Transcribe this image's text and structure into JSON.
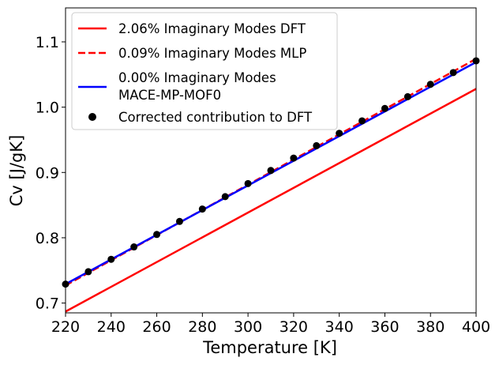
{
  "chart_data": {
    "type": "line",
    "xlabel": "Temperature [K]",
    "ylabel": "Cv [J/gK]",
    "xlim": [
      220,
      400
    ],
    "ylim": [
      0.685,
      1.152
    ],
    "xticks": [
      220,
      240,
      260,
      280,
      300,
      320,
      340,
      360,
      380,
      400
    ],
    "yticks": [
      0.7,
      0.8,
      0.9,
      1.0,
      1.1
    ],
    "ytick_labels": [
      "0.7",
      "0.8",
      "0.9",
      "1.0",
      "1.1"
    ],
    "grid": false,
    "legend_position": "top-left",
    "series": [
      {
        "name": "2.06% Imaginary Modes DFT",
        "style": "solid",
        "color": "#ff0000",
        "x": [
          220,
          400
        ],
        "y": [
          0.687,
          1.028
        ]
      },
      {
        "name": "0.09% Imaginary Modes MLP",
        "style": "dashed",
        "color": "#ff0000",
        "x": [
          220,
          400
        ],
        "y": [
          0.727,
          1.074
        ]
      },
      {
        "name": "0.00% Imaginary Modes MACE-MP-MOF0",
        "label_lines": [
          "0.00% Imaginary Modes",
          "MACE-MP-MOF0"
        ],
        "style": "solid",
        "color": "#0000ff",
        "x": [
          220,
          400
        ],
        "y": [
          0.729,
          1.069
        ]
      },
      {
        "name": "Corrected contribution to DFT",
        "style": "scatter",
        "color": "#000000",
        "x": [
          220,
          230,
          240,
          250,
          260,
          270,
          280,
          290,
          300,
          310,
          320,
          330,
          340,
          350,
          360,
          370,
          380,
          390,
          400
        ],
        "y": [
          0.729,
          0.748,
          0.767,
          0.786,
          0.805,
          0.825,
          0.844,
          0.863,
          0.883,
          0.903,
          0.922,
          0.941,
          0.96,
          0.979,
          0.998,
          1.016,
          1.035,
          1.053,
          1.071
        ]
      }
    ]
  }
}
